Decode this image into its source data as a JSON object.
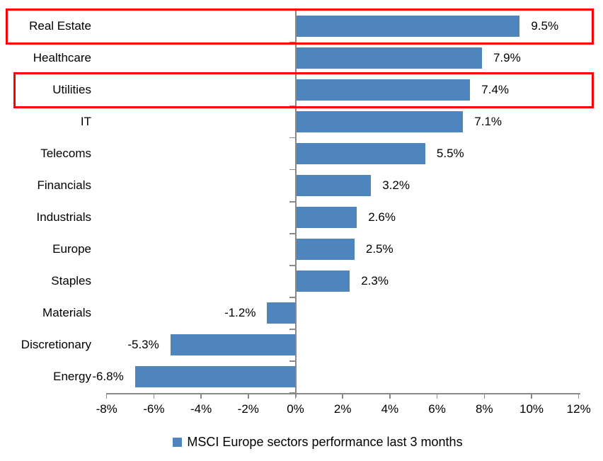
{
  "chart_data": {
    "type": "bar",
    "orientation": "horizontal",
    "title": "",
    "categories": [
      "Real Estate",
      "Healthcare",
      "Utilities",
      "IT",
      "Telecoms",
      "Financials",
      "Industrials",
      "Europe",
      "Staples",
      "Materials",
      "Discretionary",
      "Energy"
    ],
    "values": [
      9.5,
      7.9,
      7.4,
      7.1,
      5.5,
      3.2,
      2.6,
      2.5,
      2.3,
      -1.2,
      -5.3,
      -6.8
    ],
    "value_labels": [
      "9.5%",
      "7.9%",
      "7.4%",
      "7.1%",
      "5.5%",
      "3.2%",
      "2.6%",
      "2.5%",
      "2.3%",
      "-1.2%",
      "-5.3%",
      "-6.8%"
    ],
    "x_tick_labels": [
      "-8%",
      "-6%",
      "-4%",
      "-2%",
      "0%",
      "2%",
      "4%",
      "6%",
      "8%",
      "10%",
      "12%"
    ],
    "x_tick_values": [
      -8,
      -6,
      -4,
      -2,
      0,
      2,
      4,
      6,
      8,
      10,
      12
    ],
    "xlim": [
      -8,
      12
    ],
    "grid": false,
    "legend": "MSCI Europe sectors performance last 3 months",
    "legend_position": "bottom",
    "bar_color": "#4e85bd",
    "axis_color": "#898989",
    "highlight_color": "#fe0000",
    "highlighted_categories": [
      "Real Estate",
      "Utilities"
    ]
  }
}
